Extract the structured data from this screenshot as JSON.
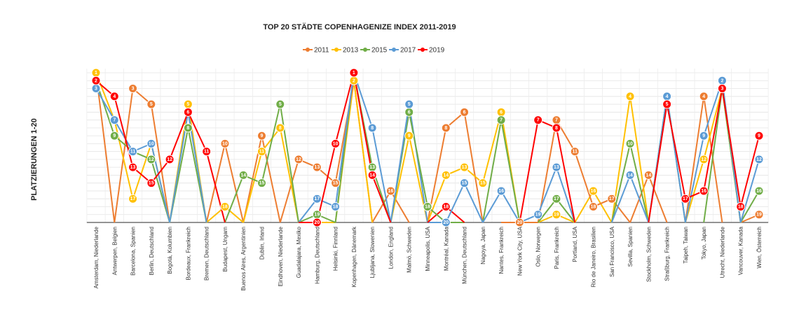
{
  "chart_data": {
    "type": "line",
    "title": "TOP 20 STÄDTE COPENHAGENIZE INDEX 2011-2019",
    "y_label": "PLATZIERUNGEN 1-20",
    "categories": [
      "Amsterdam, Niederlande",
      "Antwerpen, Belgien",
      "Barcelona, Spanien",
      "Berlin, Deutschland",
      "Bogotá, Kolumbien",
      "Bordeaux, Frankreich",
      "Bremen, Deutschland",
      "Budapest, Ungarn",
      "Buenos Aires, Argentinien",
      "Dublin, Irland",
      "Eindhoven, Niederlande",
      "Guadalajara, Mexiko",
      "Hamburg, Deutschland",
      "Helsinki, Finnland",
      "Kopenhagen, Dänemark",
      "Ljubljana, Slowenien",
      "London, England",
      "Malmö, Schweden",
      "Minneapolis, USA",
      "Montréal, Kanada",
      "München, Deutschland",
      "Nagoya, Japan",
      "Nantes, Frankreich",
      "New York City, USA",
      "Oslo, Norwegen",
      "Paris, Frankreich",
      "Portland, USA",
      "Rio de Janeiro, Brasilien",
      "San Francisco, USA",
      "Sevilla, Spanien",
      "Stockholm, Schweden",
      "Straßburg, Frankreich",
      "Taipeh, Taiwan",
      "Tokyo, Japan",
      "Utrecht, Niederlande",
      "Vancouver, Kanada",
      "Wien, Österreich"
    ],
    "series": [
      {
        "name": "2011",
        "color": "#ed7d31",
        "values": [
          1,
          null,
          3,
          5,
          null,
          null,
          null,
          10,
          null,
          9,
          null,
          12,
          13,
          15,
          2,
          null,
          16,
          null,
          null,
          8,
          6,
          null,
          null,
          20,
          null,
          7,
          11,
          18,
          17,
          null,
          14,
          null,
          null,
          4,
          null,
          null,
          19
        ]
      },
      {
        "name": "2013",
        "color": "#ffc000",
        "values": [
          1,
          7,
          17,
          10,
          null,
          5,
          null,
          18,
          null,
          11,
          8,
          null,
          20,
          null,
          2,
          null,
          null,
          9,
          null,
          14,
          13,
          15,
          6,
          null,
          null,
          19,
          null,
          16,
          null,
          4,
          null,
          null,
          null,
          12,
          3,
          null,
          null
        ]
      },
      {
        "name": "2015",
        "color": "#70ad47",
        "values": [
          2,
          9,
          11,
          12,
          null,
          8,
          null,
          null,
          14,
          15,
          5,
          null,
          19,
          null,
          1,
          13,
          null,
          6,
          18,
          20,
          null,
          null,
          7,
          null,
          null,
          17,
          null,
          null,
          null,
          10,
          null,
          4,
          null,
          null,
          3,
          null,
          16
        ]
      },
      {
        "name": "2017",
        "color": "#5b9bd5",
        "values": [
          3,
          7,
          11,
          10,
          null,
          6,
          null,
          null,
          null,
          null,
          null,
          null,
          17,
          18,
          1,
          8,
          null,
          5,
          null,
          20,
          15,
          null,
          16,
          null,
          19,
          13,
          null,
          null,
          null,
          14,
          null,
          4,
          null,
          9,
          2,
          null,
          12
        ]
      },
      {
        "name": "2019",
        "color": "#ff0000",
        "values": [
          2,
          4,
          13,
          15,
          12,
          6,
          11,
          null,
          null,
          null,
          null,
          null,
          20,
          10,
          1,
          14,
          null,
          null,
          null,
          18,
          null,
          null,
          null,
          null,
          7,
          8,
          null,
          null,
          null,
          null,
          null,
          5,
          17,
          16,
          3,
          18,
          9
        ]
      }
    ],
    "ylim": [
      1,
      20
    ],
    "y_reversed": true,
    "grid": true,
    "legend": "top"
  }
}
